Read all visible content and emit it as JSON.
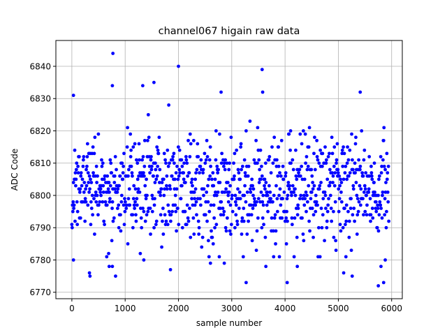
{
  "chart_data": {
    "type": "scatter",
    "title": "channel067 higain raw data",
    "xlabel": "sample number",
    "ylabel": "ADC Code",
    "xlim": [
      -300,
      6200
    ],
    "ylim": [
      6768,
      6848
    ],
    "x_ticks": [
      0,
      1000,
      2000,
      3000,
      4000,
      5000,
      6000
    ],
    "y_ticks": [
      6770,
      6780,
      6790,
      6800,
      6810,
      6820,
      6830,
      6840
    ],
    "grid": true,
    "marker_color": "#0000ff",
    "n_samples": 6000,
    "sample_step": 6,
    "x_range": [
      0,
      5950
    ],
    "y_range": [
      6772,
      6844
    ],
    "distribution": "noisy baseline centered near 6802, most values between 6785 and 6820",
    "outliers": [
      {
        "x": 770,
        "y": 6844
      },
      {
        "x": 2000,
        "y": 6840
      },
      {
        "x": 3570,
        "y": 6839
      },
      {
        "x": 760,
        "y": 6834
      },
      {
        "x": 1540,
        "y": 6835
      },
      {
        "x": 1330,
        "y": 6834
      },
      {
        "x": 30,
        "y": 6831
      },
      {
        "x": 2800,
        "y": 6832
      },
      {
        "x": 5410,
        "y": 6832
      },
      {
        "x": 3580,
        "y": 6832
      },
      {
        "x": 3270,
        "y": 6773
      },
      {
        "x": 4040,
        "y": 6773
      },
      {
        "x": 5750,
        "y": 6772
      },
      {
        "x": 5850,
        "y": 6773
      },
      {
        "x": 340,
        "y": 6775
      },
      {
        "x": 330,
        "y": 6776
      },
      {
        "x": 820,
        "y": 6775
      },
      {
        "x": 5260,
        "y": 6775
      },
      {
        "x": 5100,
        "y": 6776
      },
      {
        "x": 5800,
        "y": 6778
      },
      {
        "x": 1850,
        "y": 6777
      },
      {
        "x": 700,
        "y": 6778
      },
      {
        "x": 760,
        "y": 6778
      },
      {
        "x": 30,
        "y": 6780
      },
      {
        "x": 1350,
        "y": 6780
      },
      {
        "x": 5880,
        "y": 6780
      },
      {
        "x": 4230,
        "y": 6778
      },
      {
        "x": 3640,
        "y": 6778
      },
      {
        "x": 2860,
        "y": 6779
      },
      {
        "x": 2600,
        "y": 6779
      }
    ]
  }
}
